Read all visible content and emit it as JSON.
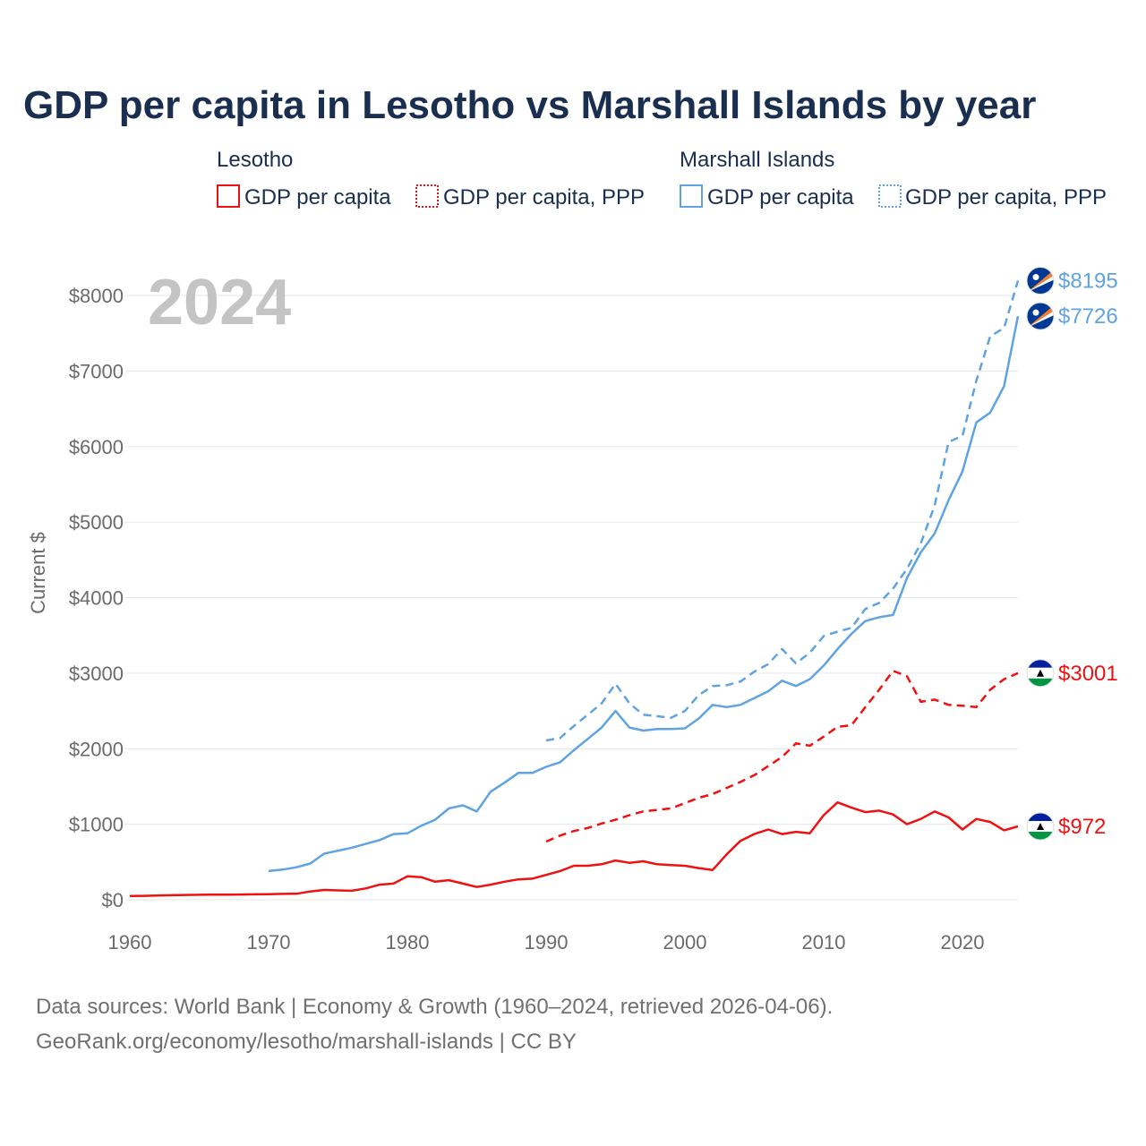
{
  "colors": {
    "lesotho": "#ee1111",
    "marshall": "#5fa3e0",
    "title": "#1a2e4f",
    "tick": "#6b6b6b",
    "grid": "#e6e6e6",
    "watermark": "#c4c4c4",
    "footer": "#707070"
  },
  "chart_data": {
    "type": "line",
    "title": "GDP per capita in Lesotho vs Marshall Islands by year",
    "ylabel": "Current $",
    "year_label": "2024",
    "xlim": [
      1960,
      2024
    ],
    "ylim": [
      0,
      8000
    ],
    "xticks": [
      1960,
      1970,
      1980,
      1990,
      2000,
      2010,
      2020
    ],
    "yticks": [
      0,
      1000,
      2000,
      3000,
      4000,
      5000,
      6000,
      7000,
      8000
    ],
    "ytick_labels": [
      "$0",
      "$1000",
      "$2000",
      "$3000",
      "$4000",
      "$5000",
      "$6000",
      "$7000",
      "$8000"
    ],
    "legend": [
      {
        "group": "Lesotho",
        "items": [
          "GDP per capita",
          "GDP per capita, PPP"
        ]
      },
      {
        "group": "Marshall Islands",
        "items": [
          "GDP per capita",
          "GDP per capita, PPP"
        ]
      }
    ],
    "series": [
      {
        "name": "Lesotho GDP per capita",
        "country": "lesotho",
        "dashed": false,
        "end_label": "$972",
        "x": [
          1960,
          1961,
          1962,
          1963,
          1964,
          1965,
          1966,
          1967,
          1968,
          1969,
          1970,
          1971,
          1972,
          1973,
          1974,
          1975,
          1976,
          1977,
          1978,
          1979,
          1980,
          1981,
          1982,
          1983,
          1984,
          1985,
          1986,
          1987,
          1988,
          1989,
          1990,
          1991,
          1992,
          1993,
          1994,
          1995,
          1996,
          1997,
          1998,
          1999,
          2000,
          2001,
          2002,
          2003,
          2004,
          2005,
          2006,
          2007,
          2008,
          2009,
          2010,
          2011,
          2012,
          2013,
          2014,
          2015,
          2016,
          2017,
          2018,
          2019,
          2020,
          2021,
          2022,
          2023,
          2024
        ],
        "values": [
          50,
          52,
          56,
          60,
          64,
          66,
          68,
          69,
          70,
          72,
          74,
          78,
          80,
          110,
          130,
          125,
          120,
          150,
          200,
          215,
          310,
          300,
          240,
          260,
          215,
          170,
          200,
          240,
          270,
          280,
          330,
          380,
          450,
          450,
          470,
          520,
          490,
          510,
          470,
          460,
          450,
          420,
          395,
          600,
          780,
          870,
          930,
          870,
          900,
          880,
          1120,
          1290,
          1220,
          1160,
          1180,
          1130,
          1000,
          1070,
          1170,
          1090,
          930,
          1070,
          1030,
          920,
          972
        ]
      },
      {
        "name": "Lesotho GDP per capita, PPP",
        "country": "lesotho",
        "dashed": true,
        "end_label": "$3001",
        "x": [
          1990,
          1991,
          1992,
          1993,
          1994,
          1995,
          1996,
          1997,
          1998,
          1999,
          2000,
          2001,
          2002,
          2003,
          2004,
          2005,
          2006,
          2007,
          2008,
          2009,
          2010,
          2011,
          2012,
          2013,
          2014,
          2015,
          2016,
          2017,
          2018,
          2019,
          2020,
          2021,
          2022,
          2023,
          2024
        ],
        "values": [
          770,
          850,
          910,
          950,
          1010,
          1060,
          1120,
          1170,
          1190,
          1210,
          1280,
          1350,
          1400,
          1480,
          1560,
          1650,
          1770,
          1890,
          2070,
          2040,
          2160,
          2290,
          2310,
          2550,
          2780,
          3030,
          2960,
          2620,
          2650,
          2580,
          2570,
          2550,
          2780,
          2920,
          3001
        ]
      },
      {
        "name": "Marshall Islands GDP per capita",
        "country": "marshall",
        "dashed": false,
        "end_label": "$7726",
        "x": [
          1970,
          1971,
          1972,
          1973,
          1974,
          1975,
          1976,
          1977,
          1978,
          1979,
          1980,
          1981,
          1982,
          1983,
          1984,
          1985,
          1986,
          1987,
          1988,
          1989,
          1990,
          1991,
          1992,
          1993,
          1994,
          1995,
          1996,
          1997,
          1998,
          1999,
          2000,
          2001,
          2002,
          2003,
          2004,
          2005,
          2006,
          2007,
          2008,
          2009,
          2010,
          2011,
          2012,
          2013,
          2014,
          2015,
          2016,
          2017,
          2018,
          2019,
          2020,
          2021,
          2022,
          2023,
          2024
        ],
        "values": [
          380,
          400,
          430,
          480,
          610,
          650,
          690,
          740,
          790,
          870,
          880,
          980,
          1060,
          1210,
          1250,
          1170,
          1430,
          1550,
          1680,
          1680,
          1760,
          1820,
          1980,
          2130,
          2280,
          2500,
          2280,
          2240,
          2260,
          2260,
          2270,
          2400,
          2580,
          2550,
          2580,
          2670,
          2760,
          2900,
          2830,
          2920,
          3100,
          3320,
          3520,
          3690,
          3740,
          3770,
          4260,
          4600,
          4850,
          5290,
          5670,
          6320,
          6450,
          6800,
          7726
        ]
      },
      {
        "name": "Marshall Islands GDP per capita, PPP",
        "country": "marshall",
        "dashed": true,
        "end_label": "$8195",
        "x": [
          1990,
          1991,
          1992,
          1993,
          1994,
          1995,
          1996,
          1997,
          1998,
          1999,
          2000,
          2001,
          2002,
          2003,
          2004,
          2005,
          2006,
          2007,
          2008,
          2009,
          2010,
          2011,
          2012,
          2013,
          2014,
          2015,
          2016,
          2017,
          2018,
          2019,
          2020,
          2021,
          2022,
          2023,
          2024
        ],
        "values": [
          2110,
          2140,
          2300,
          2450,
          2600,
          2860,
          2600,
          2450,
          2430,
          2410,
          2500,
          2710,
          2830,
          2840,
          2890,
          3020,
          3120,
          3320,
          3130,
          3270,
          3490,
          3550,
          3600,
          3850,
          3930,
          4120,
          4380,
          4720,
          5220,
          6060,
          6140,
          6870,
          7460,
          7570,
          8195
        ]
      }
    ]
  },
  "footer": {
    "line1": "Data sources: World Bank | Economy & Growth (1960–2024, retrieved 2026-04-06).",
    "line2": "GeoRank.org/economy/lesotho/marshall-islands | CC BY"
  }
}
